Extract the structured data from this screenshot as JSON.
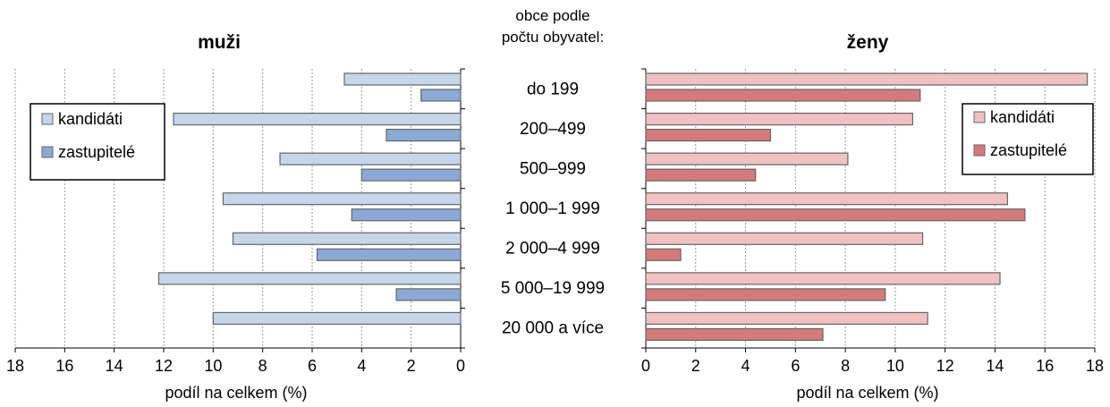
{
  "center_heading": [
    "obce podle",
    "počtu obyvatel:"
  ],
  "categories": [
    "do 199",
    "200–499",
    "500–999",
    "1 000–1 999",
    "2 000–4 999",
    "5 000–19 999",
    "20 000  a více"
  ],
  "colors": {
    "men_candidates": "#c5d5ea",
    "men_representatives": "#8aa9d6",
    "women_candidates": "#f0c1c1",
    "women_representatives": "#d47a7a",
    "bar_border": "#666666",
    "grid": "#999999"
  },
  "chart_data": [
    {
      "type": "bar",
      "orientation": "horizontal",
      "direction": "right-to-left",
      "title": "muži",
      "xlabel": "podíl na celkem (%)",
      "xlim": [
        0,
        18
      ],
      "xticks": [
        0,
        2,
        4,
        6,
        8,
        10,
        12,
        14,
        16,
        18
      ],
      "grid": "vertical dotted",
      "legend_position": "top-left",
      "categories": [
        "do 199",
        "200–499",
        "500–999",
        "1 000–1 999",
        "2 000–4 999",
        "5 000–19 999",
        "20 000  a více"
      ],
      "series": [
        {
          "name": "kandidáti",
          "values": [
            4.7,
            11.6,
            7.3,
            9.6,
            9.2,
            12.2,
            10.0
          ]
        },
        {
          "name": "zastupitelé",
          "values": [
            1.6,
            3.0,
            4.0,
            4.4,
            5.8,
            2.6,
            0
          ]
        }
      ]
    },
    {
      "type": "bar",
      "orientation": "horizontal",
      "direction": "left-to-right",
      "title": "ženy",
      "xlabel": "podíl na celkem (%)",
      "xlim": [
        0,
        18
      ],
      "xticks": [
        0,
        2,
        4,
        6,
        8,
        10,
        12,
        14,
        16,
        18
      ],
      "grid": "vertical dotted",
      "legend_position": "top-right",
      "categories": [
        "do 199",
        "200–499",
        "500–999",
        "1 000–1 999",
        "2 000–4 999",
        "5 000–19 999",
        "20 000  a více"
      ],
      "series": [
        {
          "name": "kandidáti",
          "values": [
            17.7,
            10.7,
            8.1,
            14.5,
            11.1,
            14.2,
            11.3
          ]
        },
        {
          "name": "zastupitelé",
          "values": [
            11.0,
            5.0,
            4.4,
            15.2,
            1.4,
            9.6,
            7.1
          ]
        }
      ]
    }
  ]
}
